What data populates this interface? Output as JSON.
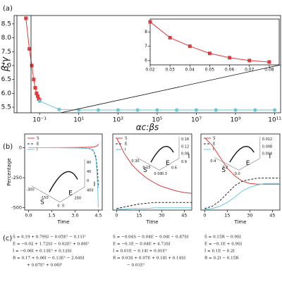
{
  "panel_labels": [
    "(a)",
    "(b)",
    "(c)"
  ],
  "chart_data": [
    {
      "type": "line",
      "x_label": "αc:βs",
      "y_label": "β:γ",
      "log_x": true,
      "grid": false,
      "xlim": [
        0.005,
        200000000000
      ],
      "ylim": [
        5.3,
        8.8
      ],
      "xticks": [
        {
          "value": 0.1,
          "label": "10⁻¹"
        },
        {
          "value": 10,
          "label": "10¹"
        },
        {
          "value": 1000,
          "label": "10³"
        },
        {
          "value": 100000,
          "label": "10⁵"
        },
        {
          "value": 10000000,
          "label": "10⁷"
        },
        {
          "value": 1000000000,
          "label": "10⁹"
        },
        {
          "value": 100000000000,
          "label": "10¹¹"
        }
      ],
      "yticks": [
        5.5,
        {
          "value": 6,
          "label": "6.0"
        },
        6.5,
        {
          "value": 7,
          "label": "7.0"
        },
        7.5,
        {
          "value": 8,
          "label": "8.0"
        },
        8.5
      ],
      "series": [
        {
          "color": "#e03b3b",
          "marker": "square",
          "x": [
            0.02,
            0.03,
            0.04,
            0.05,
            0.06,
            0.07,
            0.08,
            0.09,
            0.1
          ],
          "values": [
            8.7,
            7.6,
            7.0,
            6.5,
            6.2,
            6.0,
            5.9,
            5.8,
            5.75
          ]
        },
        {
          "color": "#6ec6dc",
          "marker": "circle",
          "x": [
            0.1,
            1,
            10,
            100,
            1000,
            10000,
            100000,
            1000000,
            10000000,
            100000000,
            1000000000,
            10000000000,
            100000000000
          ],
          "values": [
            5.72,
            5.42,
            5.4,
            5.4,
            5.4,
            5.4,
            5.4,
            5.4,
            5.4,
            5.4,
            5.4,
            5.4,
            5.4
          ]
        }
      ]
    },
    {
      "type": "line",
      "grid": false,
      "xlim": [
        0.02,
        0.085
      ],
      "ylim": [
        5.7,
        8.9
      ],
      "xticks": [
        0.02,
        0.03,
        0.04,
        0.05,
        0.06,
        0.07,
        0.08
      ],
      "yticks": [
        6,
        7,
        8
      ],
      "series": [
        {
          "color": "#e03b3b",
          "marker": "square",
          "x": [
            0.02,
            0.03,
            0.04,
            0.05,
            0.06,
            0.07,
            0.08
          ],
          "values": [
            8.7,
            7.6,
            7.0,
            6.5,
            6.2,
            6.0,
            5.9
          ]
        }
      ]
    },
    {
      "type": "line",
      "x_label": "Time",
      "y_label": "Percentage",
      "legend": "upper left",
      "grid": false,
      "xlim": [
        -0.25,
        4.75
      ],
      "ylim": [
        -520,
        115
      ],
      "xticks": [
        {
          "value": 0,
          "label": "0.0"
        },
        1.5,
        {
          "value": 3,
          "label": "3.0"
        },
        4.5
      ],
      "yticks": [
        -500,
        -250,
        0
      ],
      "x": [
        0,
        1,
        2,
        3,
        3.5,
        4,
        4.2,
        4.35,
        4.45,
        4.5
      ],
      "series": [
        {
          "name": "S",
          "color": "#e03b3b",
          "values": [
            0,
            0,
            1,
            2,
            3,
            5,
            8,
            12,
            18,
            30
          ]
        },
        {
          "name": "E",
          "color": "#222222",
          "dash": true,
          "values": [
            0,
            0,
            0,
            -1,
            -3,
            -8,
            -25,
            -80,
            -200,
            -330
          ]
        },
        {
          "name": "I",
          "color": "#6ec6dc",
          "values": [
            0,
            0,
            0,
            -1,
            -3,
            -10,
            -30,
            -100,
            -300,
            -500
          ]
        }
      ],
      "inset_labels": {
        "z": [
          "80",
          "40",
          "0"
        ],
        "a": [
          "-300",
          "-150",
          "0"
        ],
        "b": [
          "0",
          "200",
          "400"
        ],
        "axes": [
          "S",
          "E",
          "I"
        ]
      }
    },
    {
      "type": "line",
      "x_label": "Time",
      "legend": "upper left",
      "grid": false,
      "xlim": [
        -2.5,
        50
      ],
      "ylim": [
        0,
        1
      ],
      "xticks": [
        0,
        15,
        30,
        45
      ],
      "x": [
        0,
        5,
        10,
        15,
        20,
        25,
        30,
        35,
        40,
        45,
        50
      ],
      "series": [
        {
          "name": "S",
          "color": "#e03b3b",
          "values": [
            0.95,
            0.75,
            0.6,
            0.5,
            0.42,
            0.36,
            0.31,
            0.28,
            0.25,
            0.23,
            0.22
          ]
        },
        {
          "name": "E",
          "color": "#222222",
          "dash": true,
          "values": [
            0.02,
            0.04,
            0.06,
            0.08,
            0.09,
            0.1,
            0.1,
            0.1,
            0.1,
            0.1,
            0.1
          ]
        },
        {
          "name": "I",
          "color": "#6ec6dc",
          "values": [
            0.01,
            0.01,
            0.02,
            0.02,
            0.02,
            0.03,
            0.03,
            0.03,
            0.03,
            0.03,
            0.03
          ]
        }
      ],
      "inset_labels": {
        "z": [
          "0.16",
          "0.12",
          "0.08"
        ],
        "a": [
          "0.30",
          "0.15",
          "0.00"
        ],
        "b": [
          "0.3",
          "0.6",
          "0.9"
        ],
        "axes": [
          "S",
          "E",
          "I"
        ]
      }
    },
    {
      "type": "line",
      "x_label": "Time",
      "legend": "upper left",
      "grid": false,
      "xlim": [
        -2.5,
        50
      ],
      "ylim": [
        0,
        1
      ],
      "xticks": [
        0,
        15,
        30,
        45
      ],
      "x": [
        0,
        5,
        10,
        15,
        20,
        25,
        30,
        35,
        40,
        45,
        50
      ],
      "series": [
        {
          "name": "S",
          "color": "#e03b3b",
          "values": [
            0.95,
            0.85,
            0.7,
            0.55,
            0.45,
            0.38,
            0.35,
            0.34,
            0.34,
            0.34,
            0.34
          ]
        },
        {
          "name": "E",
          "color": "#222222",
          "dash": true,
          "values": [
            0.02,
            0.05,
            0.12,
            0.22,
            0.32,
            0.38,
            0.4,
            0.42,
            0.42,
            0.42,
            0.42
          ]
        },
        {
          "name": "I",
          "color": "#6ec6dc",
          "values": [
            0.01,
            0.02,
            0.05,
            0.1,
            0.17,
            0.25,
            0.3,
            0.33,
            0.35,
            0.35,
            0.35
          ]
        }
      ],
      "inset_labels": {
        "z": [
          "0.012",
          "0.008",
          "0.004"
        ],
        "a": [
          "0.4",
          "0.2",
          "0.0"
        ],
        "axes": [
          "S",
          "E",
          "I"
        ]
      }
    }
  ],
  "equations": [
    [
      "Ṡ = 0.19 + 0.79SI − 0.05E² − 0.11I²",
      "Ė = −0.02 + 1.72SI − 0.02E² + 0.06I²",
      "İ = −0.06I + 0.13E² + 0.13SI",
      "Ṙ = 0.17 + 0.06I − 0.13E² − 2.64SI",
      "+ 0.07E² + 0.06I²"
    ],
    [
      "Ṡ = −0.04S − 0.04E − 0.04I − 0.87SI",
      "Ė = −0.1E − 0.04E + 4.73SI",
      "İ = 0.01E − 0.14I + 0.01E²",
      "Ṙ = 0.03S + 0.07E + 0.18I + 0.14SI",
      "− 0.01E²"
    ],
    [
      "Ṡ = 0.15R − 0.9SI",
      "Ė = −0.1E + 0.9SI",
      "İ = 0.1E − 0.2I",
      "Ṙ = 0.2I − 0.15R"
    ]
  ]
}
